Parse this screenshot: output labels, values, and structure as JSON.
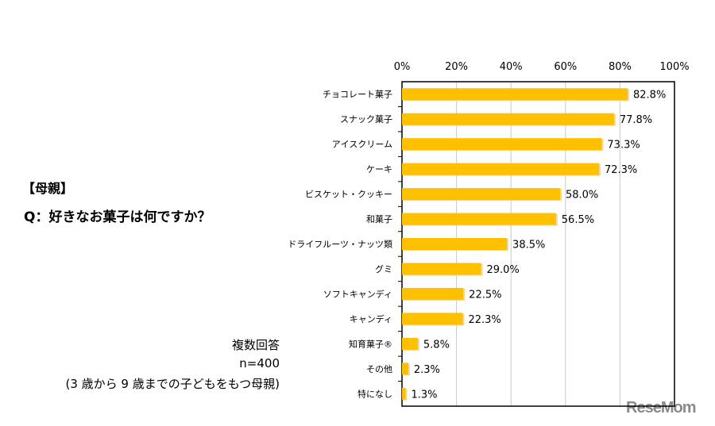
{
  "heading": "【母親】",
  "question": "Q：好きなお菓子は何ですか？",
  "notes": {
    "line1": "複数回答",
    "line2": "n=400",
    "line3": "(3 歳から 9 歳までの子どもをもつ母親)"
  },
  "logo": "ReseMom",
  "chart_data": {
    "type": "bar",
    "orientation": "horizontal",
    "categories": [
      "チョコレート菓子",
      "スナック菓子",
      "アイスクリーム",
      "ケーキ",
      "ビスケット・クッキー",
      "和菓子",
      "ドライフルーツ・ナッツ類",
      "グミ",
      "ソフトキャンディ",
      "キャンディ",
      "知育菓子®",
      "その他",
      "特になし"
    ],
    "values": [
      82.8,
      77.8,
      73.3,
      72.3,
      58.0,
      56.5,
      38.5,
      29.0,
      22.5,
      22.3,
      5.8,
      2.3,
      1.3
    ],
    "data_labels": [
      "82.8%",
      "77.8%",
      "73.3%",
      "72.3%",
      "58.0%",
      "56.5%",
      "38.5%",
      "29.0%",
      "22.5%",
      "22.3%",
      "5.8%",
      "2.3%",
      "1.3%"
    ],
    "xlim": [
      0,
      100
    ],
    "xticks": [
      "0%",
      "20%",
      "40%",
      "60%",
      "80%",
      "100%"
    ],
    "xaxis_position": "top",
    "grid": true,
    "bar_color": "#FFC000"
  }
}
